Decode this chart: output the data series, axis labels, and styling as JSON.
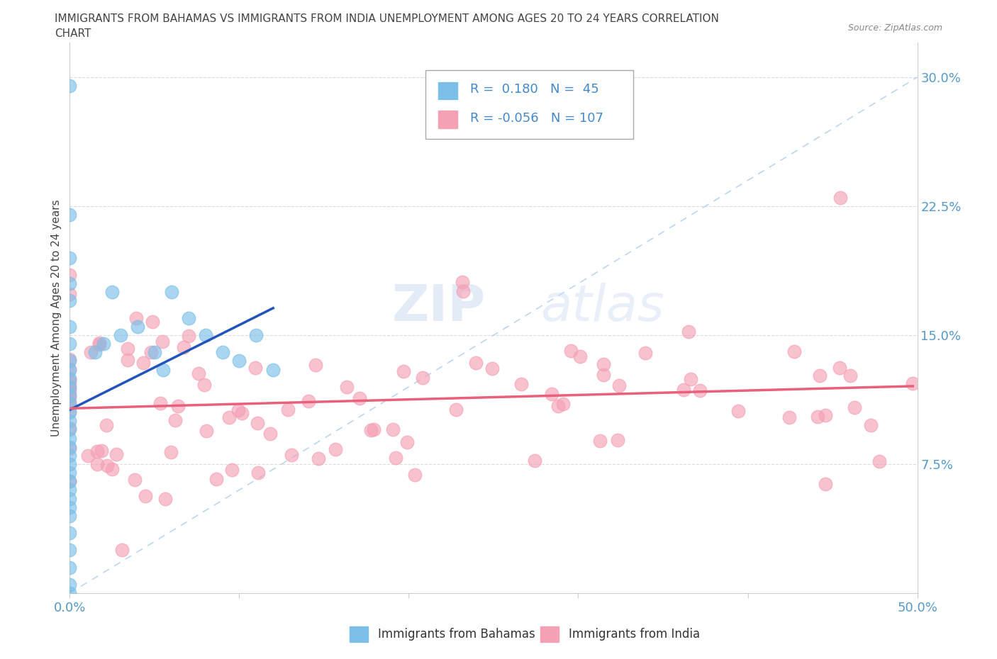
{
  "title_line1": "IMMIGRANTS FROM BAHAMAS VS IMMIGRANTS FROM INDIA UNEMPLOYMENT AMONG AGES 20 TO 24 YEARS CORRELATION",
  "title_line2": "CHART",
  "source": "Source: ZipAtlas.com",
  "ylabel": "Unemployment Among Ages 20 to 24 years",
  "xlim": [
    0,
    0.5
  ],
  "ylim": [
    0,
    0.32
  ],
  "xtick_positions": [
    0.0,
    0.1,
    0.2,
    0.3,
    0.4,
    0.5
  ],
  "xticklabels": [
    "0.0%",
    "",
    "",
    "",
    "",
    "50.0%"
  ],
  "yticks_right": [
    0.075,
    0.15,
    0.225,
    0.3
  ],
  "yticklabels_right": [
    "7.5%",
    "15.0%",
    "22.5%",
    "30.0%"
  ],
  "bahamas_color": "#7bbfe8",
  "india_color": "#f4a0b5",
  "trend_bahamas_color": "#2255bb",
  "trend_india_color": "#e8607a",
  "diagonal_color": "#aaccee",
  "R_bahamas": 0.18,
  "N_bahamas": 45,
  "R_india": -0.056,
  "N_india": 107,
  "watermark_zip": "ZIP",
  "watermark_atlas": "atlas",
  "tick_color": "#5599cc",
  "grid_color": "#cccccc",
  "title_color": "#444444",
  "source_color": "#888888",
  "legend_text_color": "#4488cc"
}
